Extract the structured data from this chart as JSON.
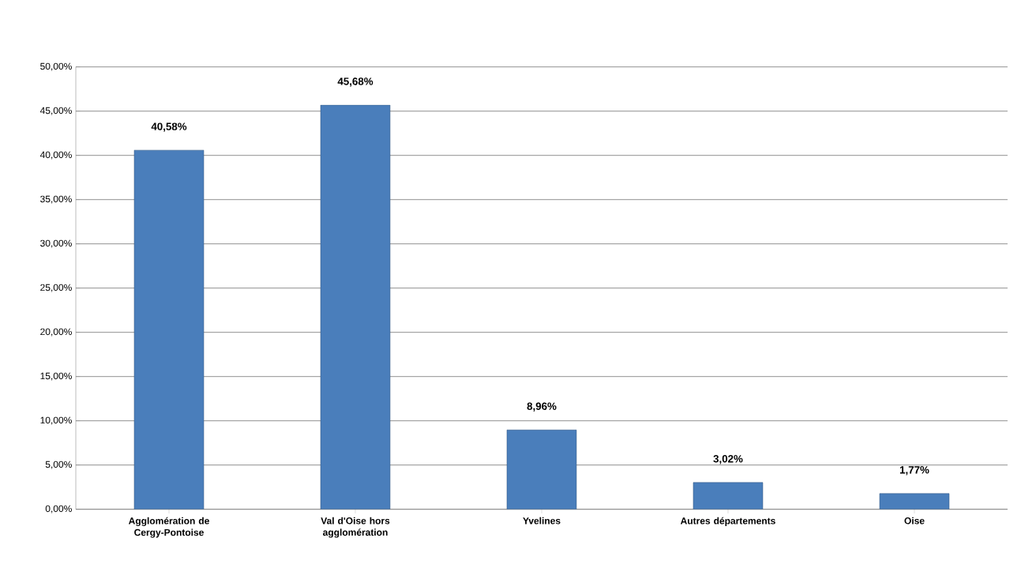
{
  "chart_data": {
    "type": "bar",
    "categories": [
      "Agglomération de Cergy-Pontoise",
      "Val d'Oise hors agglomération",
      "Yvelines",
      "Autres départements",
      "Oise"
    ],
    "values": [
      40.58,
      45.68,
      8.96,
      3.02,
      1.77
    ],
    "value_labels": [
      "40,58%",
      "45,68%",
      "8,96%",
      "3,02%",
      "1,77%"
    ],
    "color": "#4a7ebb",
    "ylim": [
      0,
      50
    ],
    "yticks": [
      {
        "value": 0,
        "label": "0,00%"
      },
      {
        "value": 5,
        "label": "5,00%"
      },
      {
        "value": 10,
        "label": "10,00%"
      },
      {
        "value": 15,
        "label": "15,00%"
      },
      {
        "value": 20,
        "label": "20,00%"
      },
      {
        "value": 25,
        "label": "25,00%"
      },
      {
        "value": 30,
        "label": "30,00%"
      },
      {
        "value": 35,
        "label": "35,00%"
      },
      {
        "value": 40,
        "label": "40,00%"
      },
      {
        "value": 45,
        "label": "45,00%"
      },
      {
        "value": 50,
        "label": "50,00%"
      }
    ],
    "grid": "y"
  }
}
